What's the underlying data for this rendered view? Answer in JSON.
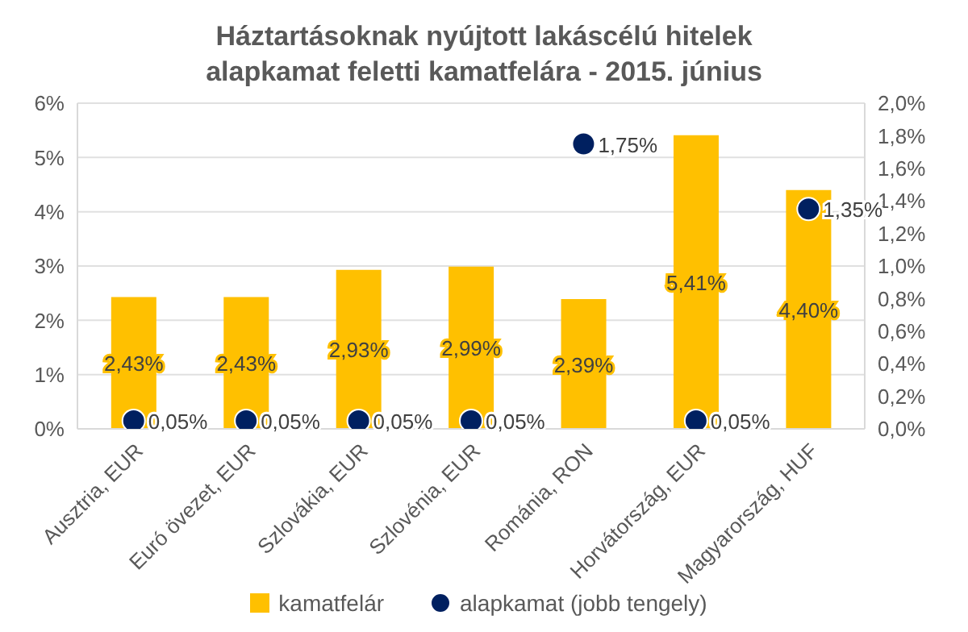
{
  "chart_data": {
    "type": "bar",
    "title": "Háztartásoknak nyújtott lakáscélú hitelek alapkamat feletti kamatfelára - 2015. június",
    "categories": [
      "Ausztria, EUR",
      "Euró övezet, EUR",
      "Szlovákia, EUR",
      "Szlovénia, EUR",
      "Románia, RON",
      "Horvátország, EUR",
      "Magyarország, HUF"
    ],
    "series": [
      {
        "name": "kamatfelár",
        "color": "#ffc000",
        "values": [
          2.43,
          2.43,
          2.93,
          2.99,
          2.39,
          5.41,
          4.4
        ],
        "value_labels": [
          "2,43%",
          "2,43%",
          "2,93%",
          "2,99%",
          "2,39%",
          "5,41%",
          "4,40%"
        ]
      },
      {
        "name": "alapkamat (jobb tengely)",
        "type": "scatter",
        "axis": "y2",
        "color": "#002060",
        "values": [
          0.05,
          0.05,
          0.05,
          0.05,
          1.75,
          0.05,
          1.35
        ],
        "value_labels": [
          "0,05%",
          "0,05%",
          "0,05%",
          "0,05%",
          "1,75%",
          "0,05%",
          "1,35%"
        ]
      }
    ],
    "ylim": [
      0,
      6
    ],
    "yticks": [
      {
        "value": 0,
        "label": "0%"
      },
      {
        "value": 1,
        "label": "1%"
      },
      {
        "value": 2,
        "label": "2%"
      },
      {
        "value": 3,
        "label": "3%"
      },
      {
        "value": 4,
        "label": "4%"
      },
      {
        "value": 5,
        "label": "5%"
      },
      {
        "value": 6,
        "label": "6%"
      }
    ],
    "y2lim": [
      0,
      2
    ],
    "y2ticks": [
      {
        "value": 0,
        "label": "0,0%"
      },
      {
        "value": 0.2,
        "label": "0,2%"
      },
      {
        "value": 0.4,
        "label": "0,4%"
      },
      {
        "value": 0.6,
        "label": "0,6%"
      },
      {
        "value": 0.8,
        "label": "0,8%"
      },
      {
        "value": 1,
        "label": "1,0%"
      },
      {
        "value": 1.2,
        "label": "1,2%"
      },
      {
        "value": 1.4,
        "label": "1,4%"
      },
      {
        "value": 1.6,
        "label": "1,6%"
      },
      {
        "value": 1.8,
        "label": "1,8%"
      },
      {
        "value": 2,
        "label": "2,0%"
      }
    ],
    "grid": "y",
    "legend": "bottom",
    "marker": "circle"
  }
}
